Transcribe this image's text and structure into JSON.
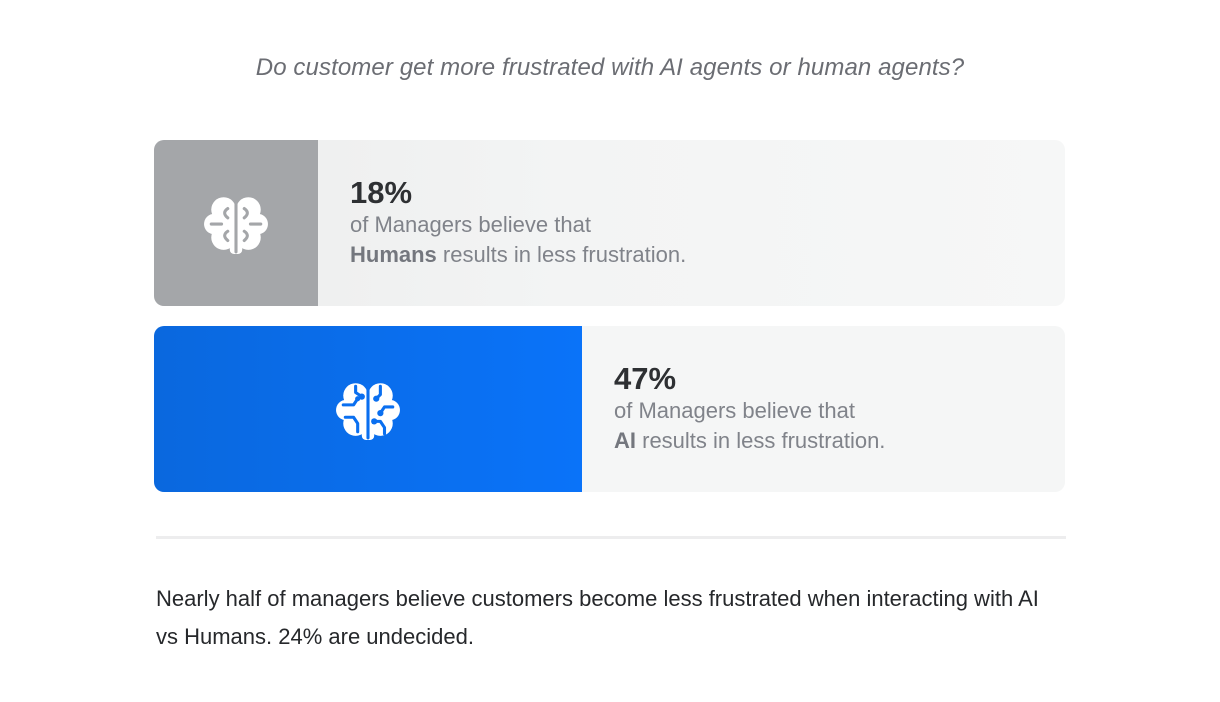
{
  "question": "Do customer get more frustrated with AI agents or human agents?",
  "chart_data": {
    "type": "bar",
    "categories": [
      "Humans",
      "AI"
    ],
    "values": [
      18,
      47
    ],
    "unit": "%",
    "xlim": [
      0,
      100
    ]
  },
  "stats": [
    {
      "percent_label": "18%",
      "line1": "of Managers believe that",
      "subject": "Humans",
      "line2_rest": " results in less frustration.",
      "icon": "brain-icon",
      "color": "#a4a6a9"
    },
    {
      "percent_label": "47%",
      "line1": "of Managers believe that",
      "subject": "AI",
      "line2_rest": " results in less frustration.",
      "icon": "ai-brain-circuit-icon",
      "color": "#0a6ff0"
    }
  ],
  "summary": "Nearly half of managers believe customers become less frustrated when interacting with AI vs Humans. 24% are undecided."
}
